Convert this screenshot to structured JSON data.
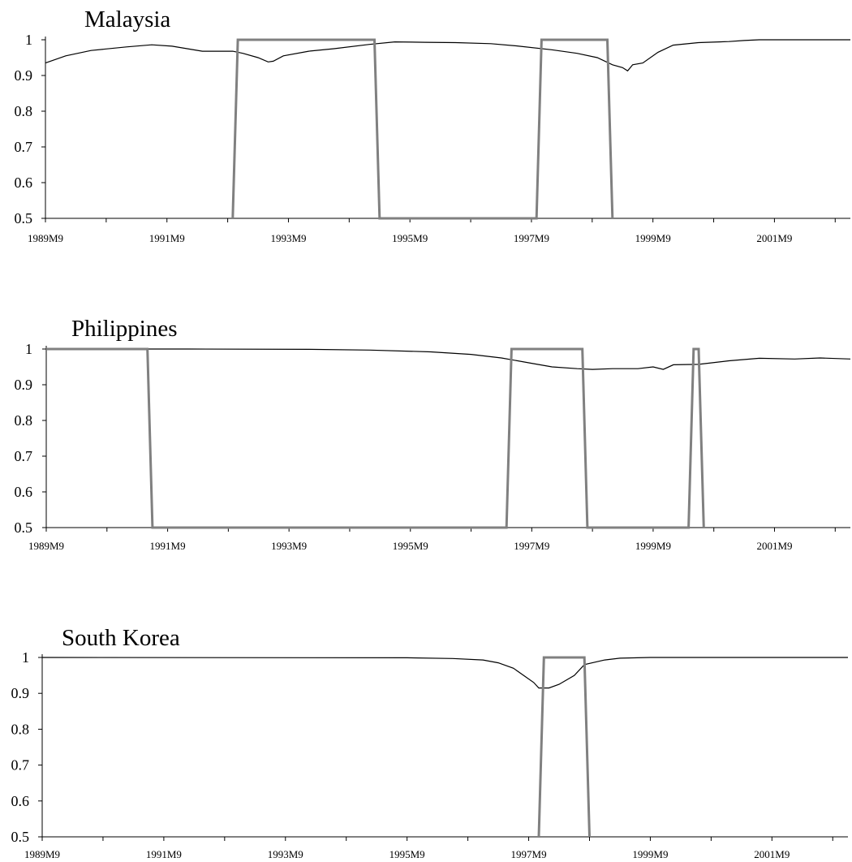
{
  "chart_data": [
    {
      "type": "line",
      "title": "Malaysia",
      "ylim": [
        0.5,
        1.0
      ],
      "xlim": [
        "1989M9",
        "2002M12"
      ],
      "yticks": [
        "0.5",
        "0.6",
        "0.7",
        "0.8",
        "0.9",
        "1"
      ],
      "xticks": [
        "1989M9",
        "1991M9",
        "1993M9",
        "1995M9",
        "1997M9",
        "1999M9",
        "2001M9"
      ],
      "grid": false,
      "series": [
        {
          "style": "thin-black",
          "color": "#000000",
          "points": [
            [
              "1989M9",
              0.935
            ],
            [
              "1990M1",
              0.955
            ],
            [
              "1990M6",
              0.97
            ],
            [
              "1991M1",
              0.98
            ],
            [
              "1991M6",
              0.986
            ],
            [
              "1991M10",
              0.982
            ],
            [
              "1992M4",
              0.968
            ],
            [
              "1992M10",
              0.968
            ],
            [
              "1992M12",
              0.962
            ],
            [
              "1993M3",
              0.95
            ],
            [
              "1993M5",
              0.938
            ],
            [
              "1993M6",
              0.94
            ],
            [
              "1993M8",
              0.955
            ],
            [
              "1994M1",
              0.968
            ],
            [
              "1994M6",
              0.975
            ],
            [
              "1995M1",
              0.987
            ],
            [
              "1995M6",
              0.994
            ],
            [
              "1995M12",
              0.993
            ],
            [
              "1996M6",
              0.992
            ],
            [
              "1997M1",
              0.989
            ],
            [
              "1997M6",
              0.983
            ],
            [
              "1998M1",
              0.972
            ],
            [
              "1998M6",
              0.962
            ],
            [
              "1998M10",
              0.95
            ],
            [
              "1999M1",
              0.93
            ],
            [
              "1999M3",
              0.922
            ],
            [
              "1999M4",
              0.913
            ],
            [
              "1999M5",
              0.93
            ],
            [
              "1999M7",
              0.935
            ],
            [
              "1999M10",
              0.965
            ],
            [
              "2000M1",
              0.985
            ],
            [
              "2000M6",
              0.992
            ],
            [
              "2000M12",
              0.995
            ],
            [
              "2001M3",
              0.998
            ],
            [
              "2001M6",
              1.0
            ],
            [
              "2002M12",
              1.0
            ]
          ]
        },
        {
          "style": "thick-gray",
          "color": "#808080",
          "points": [
            [
              "1992M10",
              0.5
            ],
            [
              "1992M11",
              1.0
            ],
            [
              "1995M2",
              1.0
            ],
            [
              "1995M3",
              0.5
            ],
            [
              "1997M10",
              0.5
            ],
            [
              "1997M11",
              1.0
            ],
            [
              "1998M12",
              1.0
            ],
            [
              "1999M1",
              0.5
            ]
          ]
        }
      ]
    },
    {
      "type": "line",
      "title": "Philippines",
      "ylim": [
        0.5,
        1.0
      ],
      "xlim": [
        "1989M9",
        "2002M12"
      ],
      "yticks": [
        "0.5",
        "0.6",
        "0.7",
        "0.8",
        "0.9",
        "1"
      ],
      "xticks": [
        "1989M9",
        "1991M9",
        "1993M9",
        "1995M9",
        "1997M9",
        "1999M9",
        "2001M9"
      ],
      "grid": false,
      "series": [
        {
          "style": "thin-black",
          "color": "#000000",
          "points": [
            [
              "1989M9",
              1.0
            ],
            [
              "1992M1",
              1.0
            ],
            [
              "1994M1",
              0.999
            ],
            [
              "1995M1",
              0.997
            ],
            [
              "1996M1",
              0.992
            ],
            [
              "1996M9",
              0.985
            ],
            [
              "1997M3",
              0.975
            ],
            [
              "1997M9",
              0.96
            ],
            [
              "1998M1",
              0.95
            ],
            [
              "1998M6",
              0.945
            ],
            [
              "1998M9",
              0.943
            ],
            [
              "1999M1",
              0.945
            ],
            [
              "1999M6",
              0.945
            ],
            [
              "1999M9",
              0.95
            ],
            [
              "1999M11",
              0.943
            ],
            [
              "2000M1",
              0.956
            ],
            [
              "2000M6",
              0.957
            ],
            [
              "2000M12",
              0.967
            ],
            [
              "2001M6",
              0.974
            ],
            [
              "2002M1",
              0.972
            ],
            [
              "2002M6",
              0.975
            ],
            [
              "2002M12",
              0.972
            ]
          ]
        },
        {
          "style": "thick-gray",
          "color": "#808080",
          "points": [
            [
              "1989M9",
              1.0
            ],
            [
              "1991M5",
              1.0
            ],
            [
              "1991M6",
              0.5
            ],
            [
              "1997M4",
              0.5
            ],
            [
              "1997M5",
              1.0
            ],
            [
              "1998M7",
              1.0
            ],
            [
              "1998M8",
              0.5
            ],
            [
              "2000M4",
              0.5
            ],
            [
              "2000M5",
              1.0
            ],
            [
              "2000M6",
              1.0
            ],
            [
              "2000M7",
              0.5
            ]
          ]
        }
      ]
    },
    {
      "type": "line",
      "title": "South Korea",
      "ylim": [
        0.5,
        1.0
      ],
      "xlim": [
        "1989M9",
        "2002M12"
      ],
      "yticks": [
        "0.5",
        "0.6",
        "0.7",
        "0.8",
        "0.9",
        "1"
      ],
      "xticks": [
        "1989M9",
        "1991M9",
        "1993M9",
        "1995M9",
        "1997M9",
        "1999M9",
        "2001M9"
      ],
      "grid": false,
      "series": [
        {
          "style": "thin-black",
          "color": "#000000",
          "points": [
            [
              "1989M9",
              1.0
            ],
            [
              "1995M9",
              0.999
            ],
            [
              "1996M6",
              0.997
            ],
            [
              "1996M12",
              0.993
            ],
            [
              "1997M3",
              0.985
            ],
            [
              "1997M6",
              0.97
            ],
            [
              "1997M8",
              0.95
            ],
            [
              "1997M10",
              0.93
            ],
            [
              "1997M11",
              0.915
            ],
            [
              "1998M1",
              0.915
            ],
            [
              "1998M3",
              0.925
            ],
            [
              "1998M6",
              0.95
            ],
            [
              "1998M8",
              0.98
            ],
            [
              "1998M12",
              0.993
            ],
            [
              "1999M3",
              0.998
            ],
            [
              "1999M9",
              1.0
            ],
            [
              "2002M12",
              1.0
            ]
          ]
        },
        {
          "style": "thick-gray",
          "color": "#808080",
          "points": [
            [
              "1997M11",
              0.5
            ],
            [
              "1997M12",
              1.0
            ],
            [
              "1998M8",
              1.0
            ],
            [
              "1998M9",
              0.5
            ]
          ]
        }
      ]
    }
  ]
}
